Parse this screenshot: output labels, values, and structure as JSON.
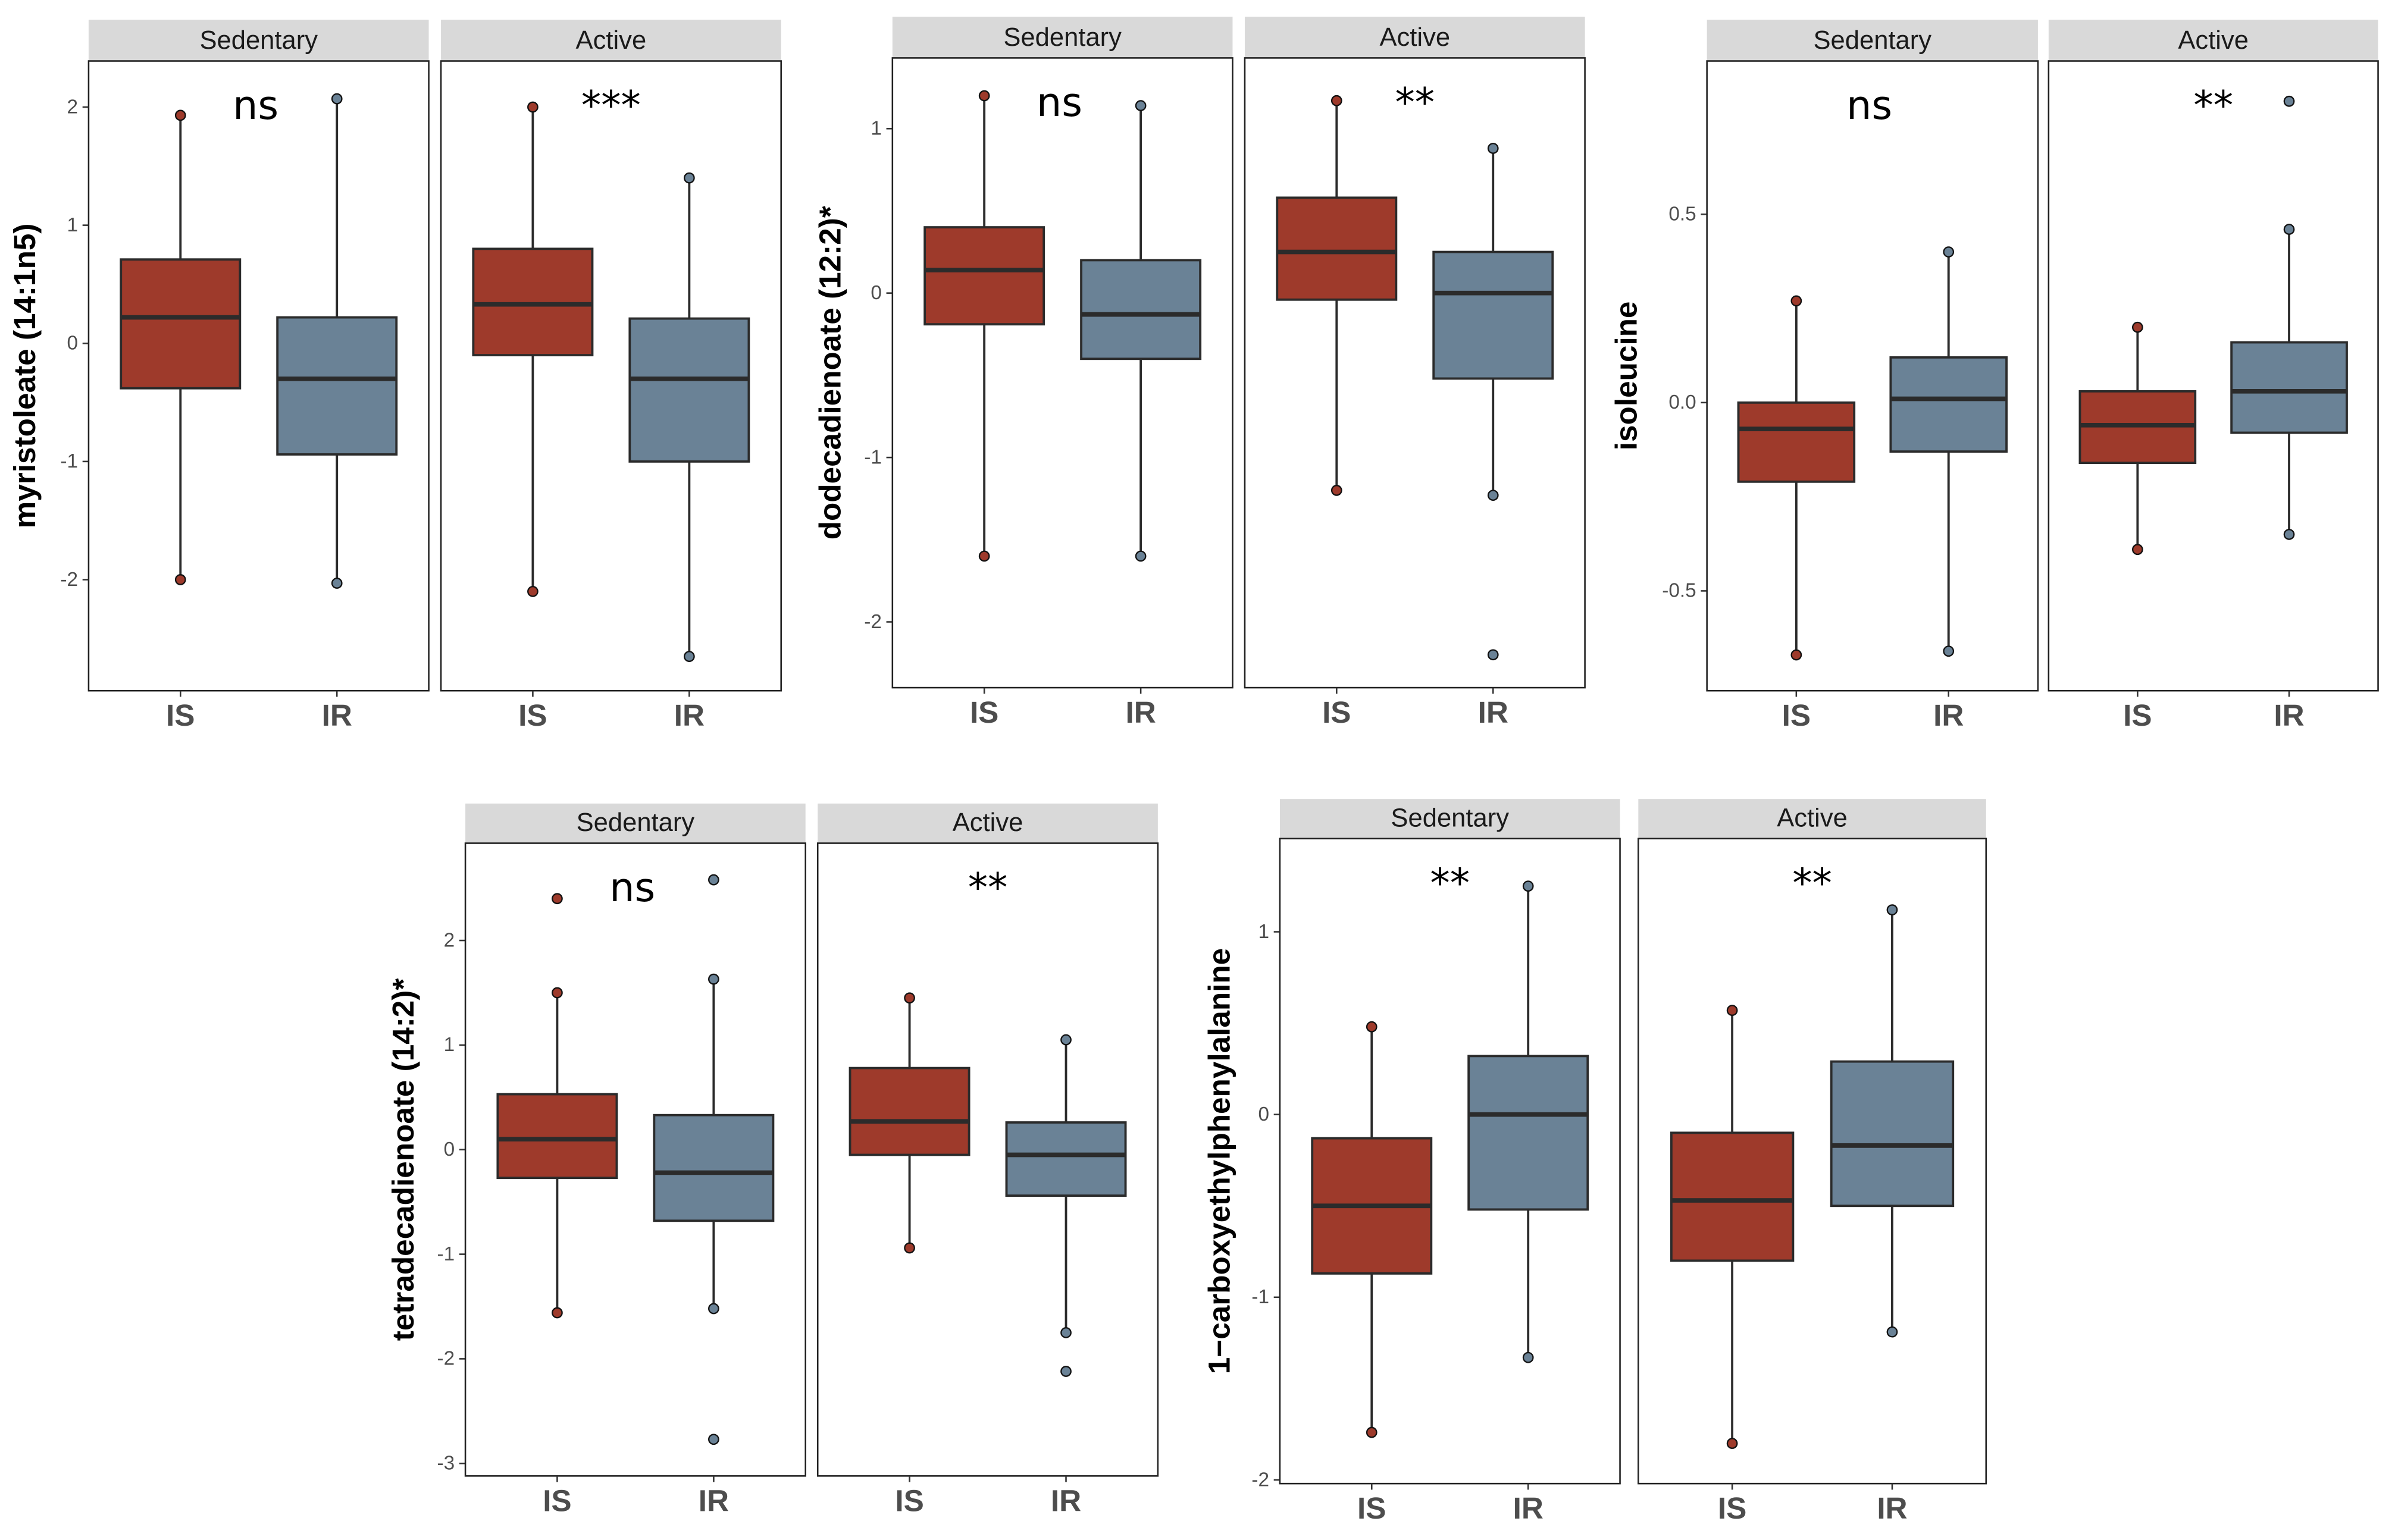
{
  "colors": {
    "IS": "#9e3a2b",
    "IR": "#6a8296",
    "strip": "#d9d9d9",
    "line": "#2b2b2b"
  },
  "chart_data": [
    {
      "type": "boxplot",
      "ylabel": "myristoleate (14:1n5)",
      "ylim": [
        -2.94,
        2.39
      ],
      "yticks": [
        2,
        1,
        0,
        -1,
        -2
      ],
      "ytick_labels": [
        "2",
        "1",
        "0",
        "-1",
        "-2"
      ],
      "categories": [
        "IS",
        "IR"
      ],
      "facets": [
        {
          "label": "Sedentary",
          "annotation": "ns",
          "groups": [
            {
              "name": "IS",
              "min": -2.0,
              "q1": -0.38,
              "median": 0.22,
              "q3": 0.71,
              "max": 1.93,
              "outliers": []
            },
            {
              "name": "IR",
              "min": -2.03,
              "q1": -0.94,
              "median": -0.3,
              "q3": 0.22,
              "max": 2.07,
              "outliers": []
            }
          ]
        },
        {
          "label": "Active",
          "annotation": "***",
          "groups": [
            {
              "name": "IS",
              "min": -2.1,
              "q1": -0.1,
              "median": 0.33,
              "q3": 0.8,
              "max": 2.0,
              "outliers": []
            },
            {
              "name": "IR",
              "min": -2.65,
              "q1": -1.0,
              "median": -0.3,
              "q3": 0.21,
              "max": 1.4,
              "outliers": []
            }
          ]
        }
      ]
    },
    {
      "type": "boxplot",
      "ylabel": "dodecadienoate (12:2)*",
      "ylim": [
        -2.4,
        1.43
      ],
      "yticks": [
        1,
        0,
        -1,
        -2
      ],
      "ytick_labels": [
        "1",
        "0",
        "-1",
        "-2"
      ],
      "categories": [
        "IS",
        "IR"
      ],
      "facets": [
        {
          "label": "Sedentary",
          "annotation": "ns",
          "groups": [
            {
              "name": "IS",
              "min": -1.6,
              "q1": -0.19,
              "median": 0.14,
              "q3": 0.4,
              "max": 1.2,
              "outliers": []
            },
            {
              "name": "IR",
              "min": -1.6,
              "q1": -0.4,
              "median": -0.13,
              "q3": 0.2,
              "max": 1.14,
              "outliers": []
            }
          ]
        },
        {
          "label": "Active",
          "annotation": "**",
          "groups": [
            {
              "name": "IS",
              "min": -1.2,
              "q1": -0.04,
              "median": 0.25,
              "q3": 0.58,
              "max": 1.17,
              "outliers": []
            },
            {
              "name": "IR",
              "min": -1.23,
              "q1": -0.52,
              "median": 0.0,
              "q3": 0.25,
              "max": 0.88,
              "outliers": [
                -2.2
              ]
            }
          ]
        }
      ]
    },
    {
      "type": "boxplot",
      "ylabel": "isoleucine",
      "ylim": [
        -0.765,
        0.907
      ],
      "yticks": [
        0.5,
        0,
        -0.5
      ],
      "ytick_labels": [
        "0.5",
        "0.0",
        "-0.5"
      ],
      "categories": [
        "IS",
        "IR"
      ],
      "facets": [
        {
          "label": "Sedentary",
          "annotation": "ns",
          "groups": [
            {
              "name": "IS",
              "min": -0.67,
              "q1": -0.21,
              "median": -0.07,
              "q3": 0.0,
              "max": 0.27,
              "outliers": []
            },
            {
              "name": "IR",
              "min": -0.66,
              "q1": -0.13,
              "median": 0.01,
              "q3": 0.12,
              "max": 0.4,
              "outliers": []
            }
          ]
        },
        {
          "label": "Active",
          "annotation": "**",
          "groups": [
            {
              "name": "IS",
              "min": -0.39,
              "q1": -0.16,
              "median": -0.06,
              "q3": 0.03,
              "max": 0.2,
              "outliers": []
            },
            {
              "name": "IR",
              "min": -0.35,
              "q1": -0.08,
              "median": 0.03,
              "q3": 0.16,
              "max": 0.46,
              "outliers": [
                0.8
              ]
            }
          ]
        }
      ]
    },
    {
      "type": "boxplot",
      "ylabel": "tetradecadienoate (14:2)*",
      "ylim": [
        -3.12,
        2.93
      ],
      "yticks": [
        2,
        1,
        0,
        -1,
        -2,
        -3
      ],
      "ytick_labels": [
        "2",
        "1",
        "0",
        "-1",
        "-2",
        "-3"
      ],
      "categories": [
        "IS",
        "IR"
      ],
      "facets": [
        {
          "label": "Sedentary",
          "annotation": "ns",
          "groups": [
            {
              "name": "IS",
              "min": -1.56,
              "q1": -0.27,
              "median": 0.1,
              "q3": 0.53,
              "max": 1.5,
              "outliers": [
                2.4
              ]
            },
            {
              "name": "IR",
              "min": -1.52,
              "q1": -0.68,
              "median": -0.22,
              "q3": 0.33,
              "max": 1.63,
              "outliers": [
                2.58,
                -2.77
              ]
            }
          ]
        },
        {
          "label": "Active",
          "annotation": "**",
          "groups": [
            {
              "name": "IS",
              "min": -0.94,
              "q1": -0.05,
              "median": 0.27,
              "q3": 0.78,
              "max": 1.45,
              "outliers": []
            },
            {
              "name": "IR",
              "min": -1.75,
              "q1": -0.44,
              "median": -0.05,
              "q3": 0.26,
              "max": 1.05,
              "outliers": [
                -2.12
              ]
            }
          ]
        }
      ]
    },
    {
      "type": "boxplot",
      "ylabel": "1−carboxyethylphenylalanine",
      "ylim": [
        -2.02,
        1.51
      ],
      "yticks": [
        1,
        0,
        -1,
        -2
      ],
      "ytick_labels": [
        "1",
        "0",
        "-1",
        "-2"
      ],
      "categories": [
        "IS",
        "IR"
      ],
      "facets": [
        {
          "label": "Sedentary",
          "annotation": "**",
          "groups": [
            {
              "name": "IS",
              "min": -1.74,
              "q1": -0.87,
              "median": -0.5,
              "q3": -0.13,
              "max": 0.48,
              "outliers": []
            },
            {
              "name": "IR",
              "min": -1.33,
              "q1": -0.52,
              "median": 0.0,
              "q3": 0.32,
              "max": 1.25,
              "outliers": []
            }
          ]
        },
        {
          "label": "Active",
          "annotation": "**",
          "groups": [
            {
              "name": "IS",
              "min": -1.8,
              "q1": -0.8,
              "median": -0.47,
              "q3": -0.1,
              "max": 0.57,
              "outliers": []
            },
            {
              "name": "IR",
              "min": -1.19,
              "q1": -0.5,
              "median": -0.17,
              "q3": 0.29,
              "max": 1.12,
              "outliers": []
            }
          ]
        }
      ]
    }
  ]
}
